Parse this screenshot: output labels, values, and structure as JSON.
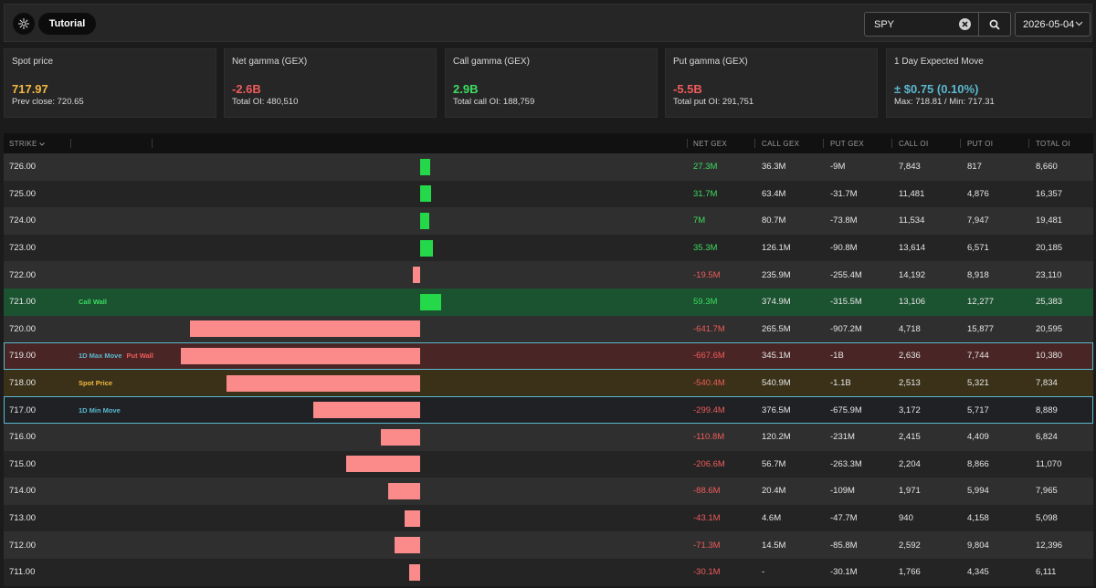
{
  "header": {
    "tutorial_label": "Tutorial",
    "search_value": "SPY",
    "date_value": "2026-05-04"
  },
  "colors": {
    "positive": "#3ddc5f",
    "negative": "#f05b5b",
    "spot": "#f5b840",
    "accent": "#5ab8d0",
    "bar_pos": "#24d84a",
    "bar_neg": "#fb8a8a"
  },
  "cards": [
    {
      "title": "Spot price",
      "value": "717.97",
      "sub": "Prev close: 720.65",
      "color": "#f5b840"
    },
    {
      "title": "Net gamma (GEX)",
      "value": "-2.6B",
      "sub": "Total OI: 480,510",
      "color": "#f05b5b"
    },
    {
      "title": "Call gamma (GEX)",
      "value": "2.9B",
      "sub": "Total call OI: 188,759",
      "color": "#3ddc5f"
    },
    {
      "title": "Put gamma (GEX)",
      "value": "-5.5B",
      "sub": "Total put OI: 291,751",
      "color": "#f05b5b"
    },
    {
      "title": "1 Day Expected Move",
      "value": "± $0.75 (0.10%)",
      "sub": "Max: 718.81 / Min: 717.31",
      "color": "#5ab8d0"
    }
  ],
  "table": {
    "headers": {
      "strike": "STRIKE",
      "net_gex": "NET GEX",
      "call_gex": "CALL GEX",
      "put_gex": "PUT GEX",
      "call_oi": "CALL OI",
      "put_oi": "PUT OI",
      "total_oi": "TOTAL OI"
    },
    "rows": [
      {
        "strike": "726.00",
        "net_gex": "27.3M",
        "net_value": 27.3,
        "call_gex": "36.3M",
        "put_gex": "-9M",
        "call_oi": "7,843",
        "put_oi": "817",
        "total_oi": "8,660",
        "tags": []
      },
      {
        "strike": "725.00",
        "net_gex": "31.7M",
        "net_value": 31.7,
        "call_gex": "63.4M",
        "put_gex": "-31.7M",
        "call_oi": "11,481",
        "put_oi": "4,876",
        "total_oi": "16,357",
        "tags": []
      },
      {
        "strike": "724.00",
        "net_gex": "7M",
        "net_value": 7,
        "call_gex": "80.7M",
        "put_gex": "-73.8M",
        "call_oi": "11,534",
        "put_oi": "7,947",
        "total_oi": "19,481",
        "tags": []
      },
      {
        "strike": "723.00",
        "net_gex": "35.3M",
        "net_value": 35.3,
        "call_gex": "126.1M",
        "put_gex": "-90.8M",
        "call_oi": "13,614",
        "put_oi": "6,571",
        "total_oi": "20,185",
        "tags": []
      },
      {
        "strike": "722.00",
        "net_gex": "-19.5M",
        "net_value": -19.5,
        "call_gex": "235.9M",
        "put_gex": "-255.4M",
        "call_oi": "14,192",
        "put_oi": "8,918",
        "total_oi": "23,110",
        "tags": []
      },
      {
        "strike": "721.00",
        "net_gex": "59.3M",
        "net_value": 59.3,
        "call_gex": "374.9M",
        "put_gex": "-315.5M",
        "call_oi": "13,106",
        "put_oi": "12,277",
        "total_oi": "25,383",
        "highlight": "callwall",
        "tags": [
          {
            "text": "Call Wall",
            "color": "#3ddc5f"
          }
        ]
      },
      {
        "strike": "720.00",
        "net_gex": "-641.7M",
        "net_value": -641.7,
        "call_gex": "265.5M",
        "put_gex": "-907.2M",
        "call_oi": "4,718",
        "put_oi": "15,877",
        "total_oi": "20,595",
        "tags": []
      },
      {
        "strike": "719.00",
        "net_gex": "-667.6M",
        "net_value": -667.6,
        "call_gex": "345.1M",
        "put_gex": "-1B",
        "call_oi": "2,636",
        "put_oi": "7,744",
        "total_oi": "10,380",
        "highlight": "putwall",
        "tags": [
          {
            "text": "1D Max Move",
            "color": "#5ab8d0"
          },
          {
            "text": "Put Wall",
            "color": "#f05b5b"
          }
        ]
      },
      {
        "strike": "718.00",
        "net_gex": "-540.4M",
        "net_value": -540.4,
        "call_gex": "540.9M",
        "put_gex": "-1.1B",
        "call_oi": "2,513",
        "put_oi": "5,321",
        "total_oi": "7,834",
        "highlight": "spot",
        "tags": [
          {
            "text": "Spot Price",
            "color": "#f5b840"
          }
        ]
      },
      {
        "strike": "717.00",
        "net_gex": "-299.4M",
        "net_value": -299.4,
        "call_gex": "376.5M",
        "put_gex": "-675.9M",
        "call_oi": "3,172",
        "put_oi": "5,717",
        "total_oi": "8,889",
        "highlight": "minmove",
        "tags": [
          {
            "text": "1D Min Move",
            "color": "#5ab8d0"
          }
        ]
      },
      {
        "strike": "716.00",
        "net_gex": "-110.8M",
        "net_value": -110.8,
        "call_gex": "120.2M",
        "put_gex": "-231M",
        "call_oi": "2,415",
        "put_oi": "4,409",
        "total_oi": "6,824",
        "tags": []
      },
      {
        "strike": "715.00",
        "net_gex": "-206.6M",
        "net_value": -206.6,
        "call_gex": "56.7M",
        "put_gex": "-263.3M",
        "call_oi": "2,204",
        "put_oi": "8,866",
        "total_oi": "11,070",
        "tags": []
      },
      {
        "strike": "714.00",
        "net_gex": "-88.6M",
        "net_value": -88.6,
        "call_gex": "20.4M",
        "put_gex": "-109M",
        "call_oi": "1,971",
        "put_oi": "5,994",
        "total_oi": "7,965",
        "tags": []
      },
      {
        "strike": "713.00",
        "net_gex": "-43.1M",
        "net_value": -43.1,
        "call_gex": "4.6M",
        "put_gex": "-47.7M",
        "call_oi": "940",
        "put_oi": "4,158",
        "total_oi": "5,098",
        "tags": []
      },
      {
        "strike": "712.00",
        "net_gex": "-71.3M",
        "net_value": -71.3,
        "call_gex": "14.5M",
        "put_gex": "-85.8M",
        "call_oi": "2,592",
        "put_oi": "9,804",
        "total_oi": "12,396",
        "tags": []
      },
      {
        "strike": "711.00",
        "net_gex": "-30.1M",
        "net_value": -30.1,
        "call_gex": "-",
        "put_gex": "-30.1M",
        "call_oi": "1,766",
        "put_oi": "4,345",
        "total_oi": "6,111",
        "tags": []
      }
    ]
  }
}
